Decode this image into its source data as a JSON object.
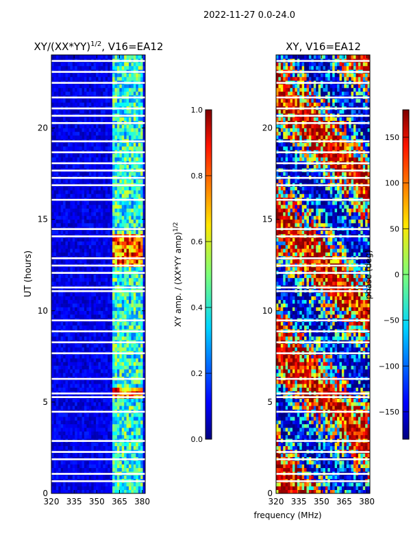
{
  "suptitle": "2022-11-27 0.0-24.0",
  "common_xlabel": "frequency (MHz)",
  "chart_data": [
    {
      "type": "heatmap",
      "title_main": "XY/(XX*YY)",
      "title_sup": "1/2",
      "title_tail": ", V16=EA12",
      "xlabel": "",
      "ylabel": "UT (hours)",
      "xlim": [
        320,
        382
      ],
      "ylim": [
        0,
        24
      ],
      "xticks": [
        "320",
        "335",
        "350",
        "365",
        "380"
      ],
      "yticks": [
        "0",
        "5",
        "10",
        "15",
        "20"
      ],
      "colorbar": {
        "label_main": "XY amp. / (XX*YY amp)",
        "label_sup": "1/2",
        "range": [
          0.0,
          1.0
        ],
        "ticks": [
          "0.0",
          "0.2",
          "0.4",
          "0.6",
          "0.8",
          "1.0"
        ]
      }
    },
    {
      "type": "heatmap",
      "title_main": "XY, V16=EA12",
      "xlabel": "frequency (MHz)",
      "ylabel": "",
      "xlim": [
        320,
        382
      ],
      "ylim": [
        0,
        24
      ],
      "xticks": [
        "320",
        "335",
        "350",
        "365",
        "380"
      ],
      "yticks": [
        "0",
        "5",
        "10",
        "15",
        "20"
      ],
      "colorbar": {
        "label_main": "phase (deg)",
        "range": [
          -180,
          180
        ],
        "ticks": [
          "−150",
          "−100",
          "−50",
          "0",
          "50",
          "100",
          "150"
        ]
      }
    }
  ]
}
